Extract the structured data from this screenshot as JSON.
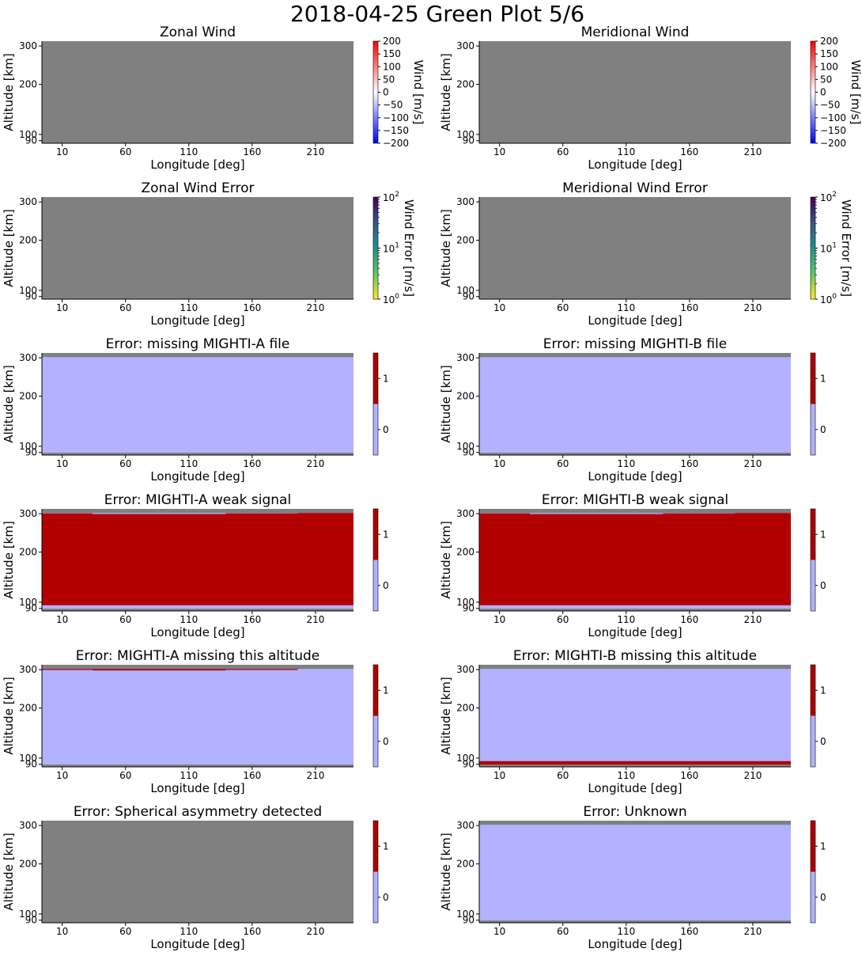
{
  "figure": {
    "suptitle": "2018-04-25 Green Plot 5/6"
  },
  "colors": {
    "nodata": "#808080",
    "flag_false": "#b2b2ff",
    "flag_true": "#b20000",
    "wind_cmap": [
      "#0000ff",
      "#ffffff",
      "#ff0000"
    ],
    "error_cmap": [
      "#fde725",
      "#5ec962",
      "#21918c",
      "#3b528b",
      "#440154"
    ]
  },
  "chart_data": [
    {
      "type": "heatmap",
      "title": "Zonal Wind",
      "xlabel": "Longitude [deg]",
      "ylabel": "Altitude [km]",
      "xticks": [
        "10",
        "60",
        "110",
        "160",
        "210"
      ],
      "yticks": [
        "90",
        "100",
        "200",
        "300"
      ],
      "xlim": [
        -6,
        240
      ],
      "ylim": [
        86,
        314
      ],
      "y_scale": "sqrt",
      "colorbar": {
        "kind": "wind",
        "label": "Wind [m/s]",
        "ticks": [
          "200",
          "150",
          "100",
          "50",
          "0",
          "−50",
          "−100",
          "−150",
          "−200"
        ],
        "range": [
          -200,
          200
        ]
      },
      "cells": [
        {
          "x": [
            -6,
            240
          ],
          "y": [
            86,
            314
          ],
          "value": "nodata"
        }
      ]
    },
    {
      "type": "heatmap",
      "title": "Meridional Wind",
      "xlabel": "Longitude [deg]",
      "ylabel": "Altitude [km]",
      "xticks": [
        "10",
        "60",
        "110",
        "160",
        "210"
      ],
      "yticks": [
        "90",
        "100",
        "200",
        "300"
      ],
      "xlim": [
        -6,
        240
      ],
      "ylim": [
        86,
        314
      ],
      "y_scale": "sqrt",
      "colorbar": {
        "kind": "wind",
        "label": "Wind [m/s]",
        "ticks": [
          "200",
          "150",
          "100",
          "50",
          "0",
          "−50",
          "−100",
          "−150",
          "−200"
        ],
        "range": [
          -200,
          200
        ]
      },
      "cells": [
        {
          "x": [
            -6,
            240
          ],
          "y": [
            86,
            314
          ],
          "value": "nodata"
        }
      ]
    },
    {
      "type": "heatmap",
      "title": "Zonal Wind Error",
      "xlabel": "Longitude [deg]",
      "ylabel": "Altitude [km]",
      "xticks": [
        "10",
        "60",
        "110",
        "160",
        "210"
      ],
      "yticks": [
        "90",
        "100",
        "200",
        "300"
      ],
      "xlim": [
        -6,
        240
      ],
      "ylim": [
        86,
        314
      ],
      "y_scale": "sqrt",
      "colorbar": {
        "kind": "error",
        "label": "Wind Error [m/s]",
        "ticks": [
          {
            "base": "10",
            "exp": "2"
          },
          {
            "base": "10",
            "exp": "1"
          },
          {
            "base": "10",
            "exp": "0"
          }
        ],
        "range": [
          1,
          100
        ],
        "scale": "log"
      },
      "cells": [
        {
          "x": [
            -6,
            240
          ],
          "y": [
            86,
            314
          ],
          "value": "nodata"
        }
      ]
    },
    {
      "type": "heatmap",
      "title": "Meridional Wind Error",
      "xlabel": "Longitude [deg]",
      "ylabel": "Altitude [km]",
      "xticks": [
        "10",
        "60",
        "110",
        "160",
        "210"
      ],
      "yticks": [
        "90",
        "100",
        "200",
        "300"
      ],
      "xlim": [
        -6,
        240
      ],
      "ylim": [
        86,
        314
      ],
      "y_scale": "sqrt",
      "colorbar": {
        "kind": "error",
        "label": "Wind Error [m/s]",
        "ticks": [
          {
            "base": "10",
            "exp": "2"
          },
          {
            "base": "10",
            "exp": "1"
          },
          {
            "base": "10",
            "exp": "0"
          }
        ],
        "range": [
          1,
          100
        ],
        "scale": "log"
      },
      "cells": [
        {
          "x": [
            -6,
            240
          ],
          "y": [
            86,
            314
          ],
          "value": "nodata"
        }
      ]
    },
    {
      "type": "heatmap",
      "title": "Error: missing MIGHTI-A file",
      "xlabel": "Longitude [deg]",
      "ylabel": "Altitude [km]",
      "xticks": [
        "10",
        "60",
        "110",
        "160",
        "210"
      ],
      "yticks": [
        "90",
        "100",
        "200",
        "300"
      ],
      "xlim": [
        -6,
        240
      ],
      "ylim": [
        86,
        314
      ],
      "y_scale": "sqrt",
      "colorbar": {
        "kind": "flag",
        "ticks": [
          "1",
          "0"
        ],
        "range": [
          -0.5,
          1.5
        ]
      },
      "cells": [
        {
          "x": [
            -6,
            240
          ],
          "y": [
            86,
            314
          ],
          "value": "nodata"
        },
        {
          "x": [
            -6,
            240
          ],
          "y": [
            89.5,
            302
          ],
          "value": 0
        }
      ]
    },
    {
      "type": "heatmap",
      "title": "Error: missing MIGHTI-B file",
      "xlabel": "Longitude [deg]",
      "ylabel": "Altitude [km]",
      "xticks": [
        "10",
        "60",
        "110",
        "160",
        "210"
      ],
      "yticks": [
        "90",
        "100",
        "200",
        "300"
      ],
      "xlim": [
        -6,
        240
      ],
      "ylim": [
        86,
        314
      ],
      "y_scale": "sqrt",
      "colorbar": {
        "kind": "flag",
        "ticks": [
          "1",
          "0"
        ],
        "range": [
          -0.5,
          1.5
        ]
      },
      "cells": [
        {
          "x": [
            -6,
            240
          ],
          "y": [
            86,
            314
          ],
          "value": "nodata"
        },
        {
          "x": [
            -6,
            240
          ],
          "y": [
            89.5,
            302
          ],
          "value": 0
        }
      ]
    },
    {
      "type": "heatmap",
      "title": "Error: MIGHTI-A weak signal",
      "xlabel": "Longitude [deg]",
      "ylabel": "Altitude [km]",
      "xticks": [
        "10",
        "60",
        "110",
        "160",
        "210"
      ],
      "yticks": [
        "90",
        "100",
        "200",
        "300"
      ],
      "xlim": [
        -6,
        240
      ],
      "ylim": [
        86,
        314
      ],
      "y_scale": "sqrt",
      "colorbar": {
        "kind": "flag",
        "ticks": [
          "1",
          "0"
        ],
        "range": [
          -0.5,
          1.5
        ]
      },
      "cells": [
        {
          "x": [
            -6,
            240
          ],
          "y": [
            86,
            314
          ],
          "value": "nodata"
        },
        {
          "x": [
            -6,
            240
          ],
          "y": [
            89.5,
            302
          ],
          "value": 0
        },
        {
          "x": [
            -6,
            240
          ],
          "y": [
            95,
            299
          ],
          "value": 1
        },
        {
          "x": [
            -6,
            34
          ],
          "y": [
            299,
            301
          ],
          "value": 1
        },
        {
          "x": [
            139,
            196
          ],
          "y": [
            299,
            301
          ],
          "value": 1
        },
        {
          "x": [
            196,
            240
          ],
          "y": [
            299,
            302
          ],
          "value": 1
        }
      ]
    },
    {
      "type": "heatmap",
      "title": "Error: MIGHTI-B weak signal",
      "xlabel": "Longitude [deg]",
      "ylabel": "Altitude [km]",
      "xticks": [
        "10",
        "60",
        "110",
        "160",
        "210"
      ],
      "yticks": [
        "90",
        "100",
        "200",
        "300"
      ],
      "xlim": [
        -6,
        240
      ],
      "ylim": [
        86,
        314
      ],
      "y_scale": "sqrt",
      "colorbar": {
        "kind": "flag",
        "ticks": [
          "1",
          "0"
        ],
        "range": [
          -0.5,
          1.5
        ]
      },
      "cells": [
        {
          "x": [
            -6,
            240
          ],
          "y": [
            86,
            314
          ],
          "value": "nodata"
        },
        {
          "x": [
            -6,
            240
          ],
          "y": [
            89.5,
            302
          ],
          "value": 0
        },
        {
          "x": [
            -6,
            240
          ],
          "y": [
            95,
            299
          ],
          "value": 1
        },
        {
          "x": [
            -6,
            34
          ],
          "y": [
            299,
            301
          ],
          "value": 1
        },
        {
          "x": [
            139,
            196
          ],
          "y": [
            299,
            301
          ],
          "value": 1
        },
        {
          "x": [
            196,
            240
          ],
          "y": [
            299,
            302
          ],
          "value": 1
        }
      ]
    },
    {
      "type": "heatmap",
      "title": "Error: MIGHTI-A missing this altitude",
      "xlabel": "Longitude [deg]",
      "ylabel": "Altitude [km]",
      "xticks": [
        "10",
        "60",
        "110",
        "160",
        "210"
      ],
      "yticks": [
        "90",
        "100",
        "200",
        "300"
      ],
      "xlim": [
        -6,
        240
      ],
      "ylim": [
        86,
        314
      ],
      "y_scale": "sqrt",
      "colorbar": {
        "kind": "flag",
        "ticks": [
          "1",
          "0"
        ],
        "range": [
          -0.5,
          1.5
        ]
      },
      "cells": [
        {
          "x": [
            -6,
            240
          ],
          "y": [
            86,
            314
          ],
          "value": "nodata"
        },
        {
          "x": [
            -6,
            240
          ],
          "y": [
            89.5,
            302
          ],
          "value": 0
        },
        {
          "x": [
            -6,
            34
          ],
          "y": [
            299,
            302
          ],
          "value": 1
        },
        {
          "x": [
            34,
            139
          ],
          "y": [
            297.5,
            302
          ],
          "value": 1
        },
        {
          "x": [
            139,
            196
          ],
          "y": [
            299,
            302
          ],
          "value": 1
        }
      ]
    },
    {
      "type": "heatmap",
      "title": "Error: MIGHTI-B missing this altitude",
      "xlabel": "Longitude [deg]",
      "ylabel": "Altitude [km]",
      "xticks": [
        "10",
        "60",
        "110",
        "160",
        "210"
      ],
      "yticks": [
        "90",
        "100",
        "200",
        "300"
      ],
      "xlim": [
        -6,
        240
      ],
      "ylim": [
        86,
        314
      ],
      "y_scale": "sqrt",
      "colorbar": {
        "kind": "flag",
        "ticks": [
          "1",
          "0"
        ],
        "range": [
          -0.5,
          1.5
        ]
      },
      "cells": [
        {
          "x": [
            -6,
            240
          ],
          "y": [
            86,
            314
          ],
          "value": "nodata"
        },
        {
          "x": [
            -6,
            240
          ],
          "y": [
            89.5,
            302
          ],
          "value": 0
        },
        {
          "x": [
            -6,
            240
          ],
          "y": [
            89.5,
            95
          ],
          "value": 1
        }
      ]
    },
    {
      "type": "heatmap",
      "title": "Error: Spherical asymmetry detected",
      "xlabel": "Longitude [deg]",
      "ylabel": "Altitude [km]",
      "xticks": [
        "10",
        "60",
        "110",
        "160",
        "210"
      ],
      "yticks": [
        "90",
        "100",
        "200",
        "300"
      ],
      "xlim": [
        -6,
        240
      ],
      "ylim": [
        86,
        314
      ],
      "y_scale": "sqrt",
      "colorbar": {
        "kind": "flag",
        "ticks": [
          "1",
          "0"
        ],
        "range": [
          -0.5,
          1.5
        ]
      },
      "cells": [
        {
          "x": [
            -6,
            240
          ],
          "y": [
            86,
            314
          ],
          "value": "nodata"
        }
      ]
    },
    {
      "type": "heatmap",
      "title": "Error: Unknown",
      "xlabel": "Longitude [deg]",
      "ylabel": "Altitude [km]",
      "xticks": [
        "10",
        "60",
        "110",
        "160",
        "210"
      ],
      "yticks": [
        "90",
        "100",
        "200",
        "300"
      ],
      "xlim": [
        -6,
        240
      ],
      "ylim": [
        86,
        314
      ],
      "y_scale": "sqrt",
      "colorbar": {
        "kind": "flag",
        "ticks": [
          "1",
          "0"
        ],
        "range": [
          -0.5,
          1.5
        ]
      },
      "cells": [
        {
          "x": [
            -6,
            240
          ],
          "y": [
            86,
            314
          ],
          "value": "nodata"
        },
        {
          "x": [
            -6,
            240
          ],
          "y": [
            89.5,
            302
          ],
          "value": 0
        }
      ]
    }
  ]
}
